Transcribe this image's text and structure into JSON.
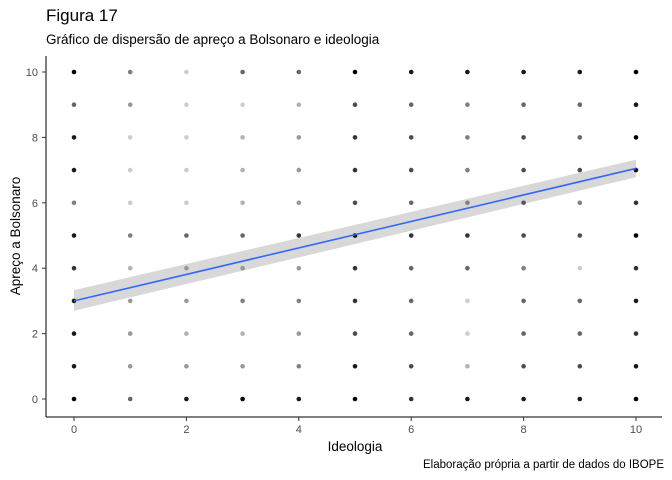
{
  "header": {
    "title": "Figura 17",
    "subtitle": "Gráfico de dispersão de apreço a Bolsonaro e ideologia",
    "caption": "Elaboração própria a partir de dados do IBOPE"
  },
  "chart_data": {
    "type": "scatter",
    "xlabel": "Ideologia",
    "ylabel": "Apreço a Bolsonaro",
    "xlim": [
      -0.5,
      10.5
    ],
    "ylim": [
      -0.5,
      10.5
    ],
    "xticks": [
      0,
      2,
      4,
      6,
      8,
      10
    ],
    "yticks": [
      0,
      2,
      4,
      6,
      8,
      10
    ],
    "grid": false,
    "point_color": "#000000",
    "points": {
      "note": "grid of integer (x,y) combinations; opacity = overplotting density",
      "x": [
        0,
        1,
        2,
        3,
        4,
        5,
        6,
        7,
        8,
        9,
        10
      ],
      "y": [
        0,
        1,
        2,
        3,
        4,
        5,
        6,
        7,
        8,
        9,
        10
      ],
      "opacity_by_y": [
        [
          1.0,
          0.6,
          0.9,
          1.0,
          0.9,
          1.0,
          0.8,
          0.9,
          0.9,
          0.9,
          1.0
        ],
        [
          0.9,
          0.4,
          0.4,
          0.4,
          0.5,
          0.9,
          0.7,
          0.3,
          0.7,
          0.7,
          0.9
        ],
        [
          0.9,
          0.4,
          0.3,
          0.3,
          0.4,
          0.7,
          0.6,
          0.2,
          0.6,
          0.6,
          0.8
        ],
        [
          0.9,
          0.4,
          0.4,
          0.5,
          0.5,
          0.8,
          0.6,
          0.2,
          0.6,
          0.6,
          0.9
        ],
        [
          0.8,
          0.3,
          0.3,
          0.3,
          0.4,
          0.8,
          0.6,
          0.6,
          0.5,
          0.2,
          0.8
        ],
        [
          0.9,
          0.5,
          0.6,
          0.6,
          0.8,
          1.0,
          0.8,
          0.8,
          0.7,
          0.7,
          1.0
        ],
        [
          0.5,
          0.2,
          0.2,
          0.3,
          0.4,
          0.7,
          0.6,
          0.4,
          0.6,
          0.5,
          0.8
        ],
        [
          0.9,
          0.2,
          0.2,
          0.3,
          0.4,
          0.8,
          0.7,
          0.5,
          0.7,
          0.7,
          0.9
        ],
        [
          0.9,
          0.2,
          0.2,
          0.3,
          0.4,
          0.8,
          0.7,
          0.5,
          0.7,
          0.6,
          1.0
        ],
        [
          0.6,
          0.4,
          0.2,
          0.2,
          0.3,
          0.7,
          0.6,
          0.5,
          0.6,
          0.6,
          0.9
        ],
        [
          1.0,
          0.5,
          0.2,
          0.6,
          0.6,
          1.0,
          0.9,
          0.9,
          0.9,
          0.9,
          1.0
        ]
      ]
    },
    "trend": {
      "method": "linear",
      "color": "#3366FF",
      "band_color": "#BEBEBE",
      "x": [
        0,
        10
      ],
      "y": [
        3.0,
        7.05
      ],
      "ci_lower": [
        2.7,
        6.78
      ],
      "ci_upper": [
        3.33,
        7.32
      ]
    }
  }
}
